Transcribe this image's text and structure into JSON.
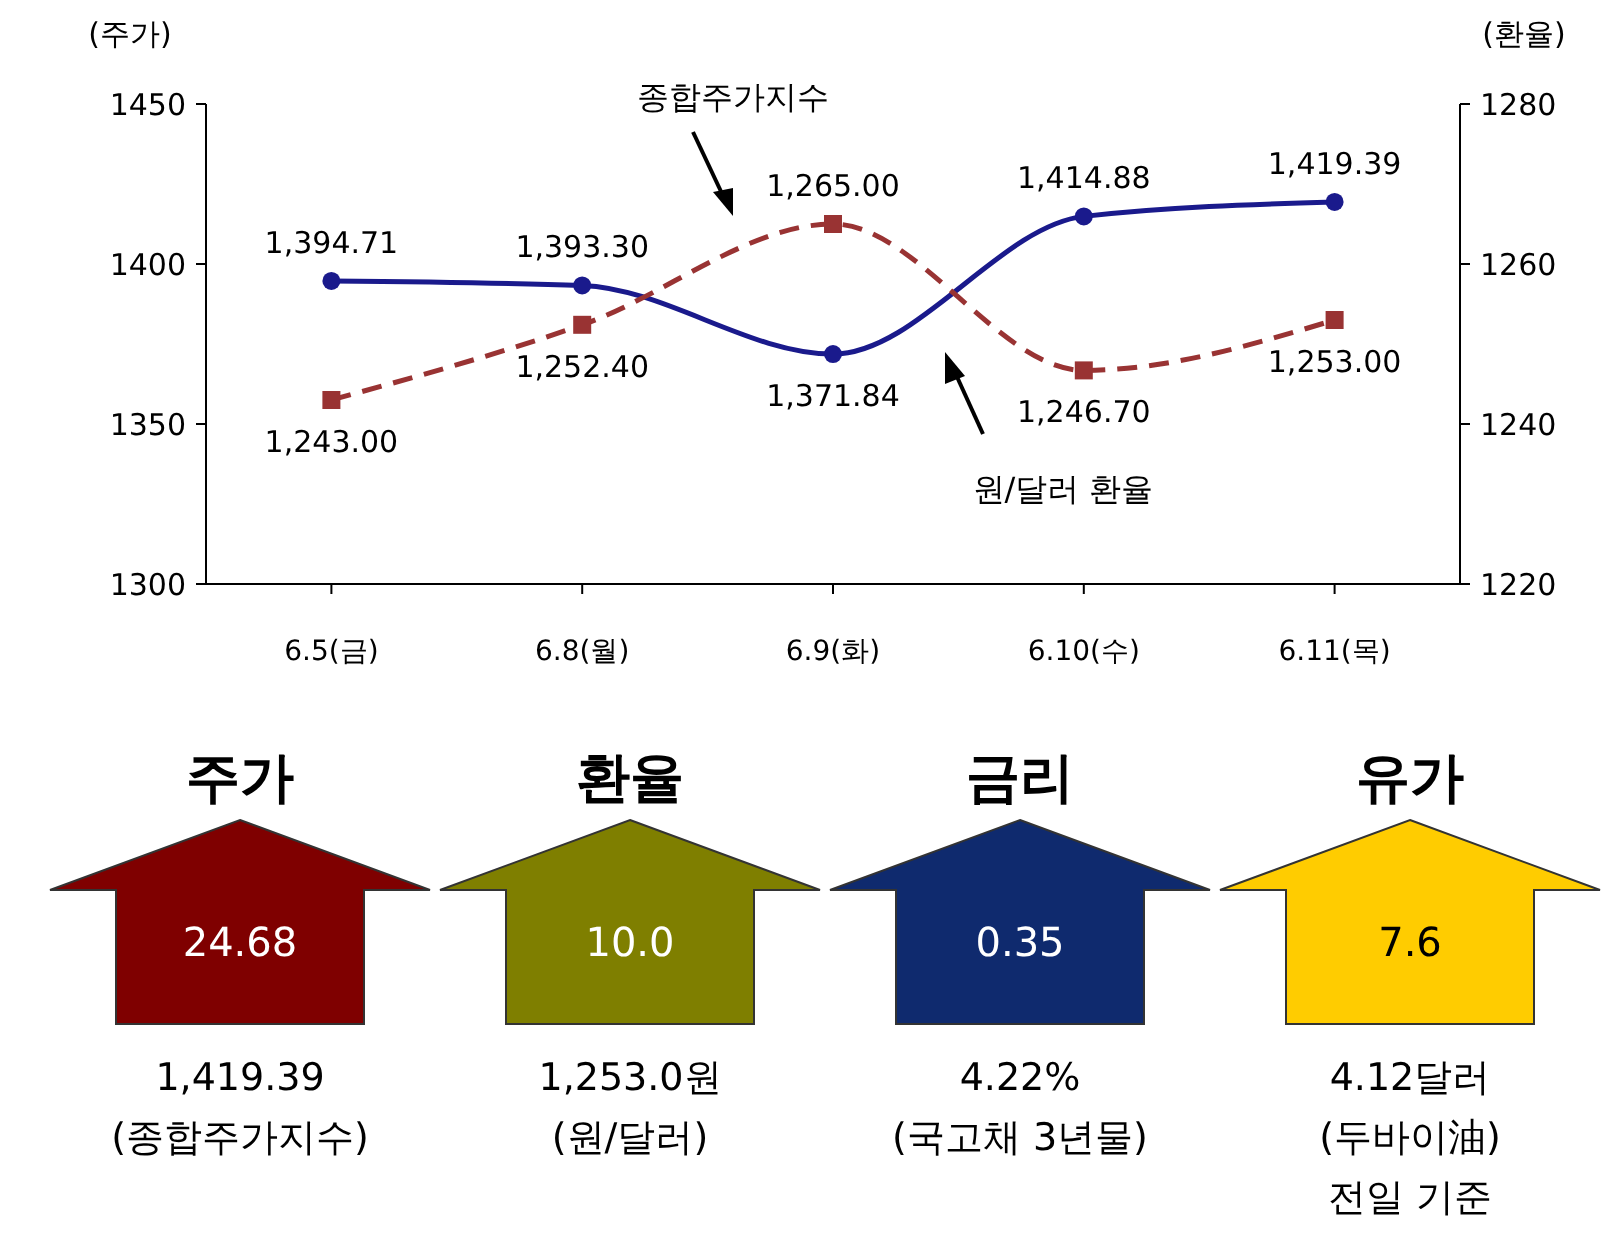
{
  "chart_data": [
    {
      "type": "line",
      "ylabel": "(주가)",
      "y2label": "(환율)",
      "categories": [
        "6.5(금)",
        "6.8(월)",
        "6.9(화)",
        "6.10(수)",
        "6.11(목)"
      ],
      "series": [
        {
          "name": "종합주가지수",
          "color": "#1a1a8c",
          "marker": "circle",
          "line_style": "solid",
          "values": [
            1394.71,
            1393.3,
            1371.84,
            1414.88,
            1419.39
          ],
          "value_labels": [
            "1,394.71",
            "1,393.30",
            "1,371.84",
            "1,414.88",
            "1,419.39"
          ]
        },
        {
          "name": "원/달러 환율",
          "color": "#993333",
          "marker": "square",
          "line_style": "dashed",
          "axis": "y2",
          "values": [
            1243.0,
            1252.4,
            1265.0,
            1246.7,
            1253.0
          ],
          "value_labels": [
            "1,243.00",
            "1,252.40",
            "1,265.00",
            "1,246.70",
            "1,253.00"
          ]
        }
      ],
      "ylim": [
        1300,
        1450
      ],
      "yticks": [
        1300,
        1350,
        1400,
        1450
      ],
      "y2lim": [
        1220,
        1280
      ],
      "y2ticks": [
        1220,
        1240,
        1260,
        1280
      ],
      "grid": false
    },
    {
      "type": "other",
      "categories": [
        "주가",
        "환율",
        "금리",
        "유가"
      ],
      "value_labels": [
        "24.68",
        "10.0",
        "0.35",
        "7.6"
      ],
      "colors": [
        "#7f0000",
        "#7f7f00",
        "#0f2a6e",
        "#ffcc00"
      ],
      "annotations": [
        [
          "1,419.39",
          "(종합주가지수)"
        ],
        [
          "1,253.0원",
          "(원/달러)"
        ],
        [
          "4.22%",
          "(국고채 3년물)"
        ],
        [
          "4.12달러",
          "(두바이油)",
          "전일 기준"
        ]
      ]
    }
  ]
}
